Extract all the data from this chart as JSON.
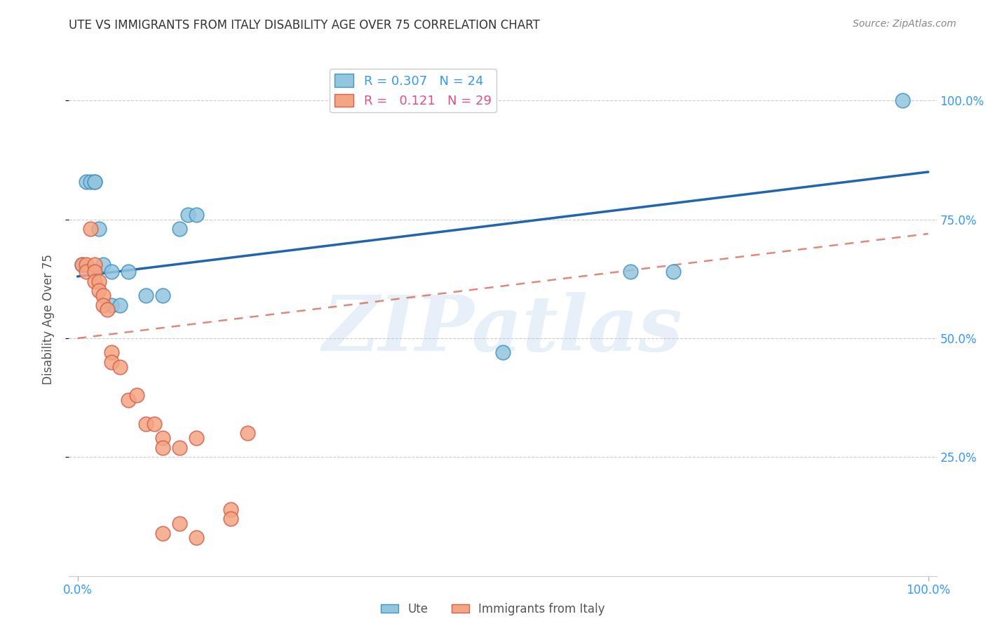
{
  "title": "UTE VS IMMIGRANTS FROM ITALY DISABILITY AGE OVER 75 CORRELATION CHART",
  "source": "Source: ZipAtlas.com",
  "ylabel": "Disability Age Over 75",
  "watermark": "ZIPatlas",
  "ute_color": "#92c5de",
  "ute_edge_color": "#4393c3",
  "italy_color": "#f4a582",
  "italy_edge_color": "#d6604d",
  "ute_line_color": "#2166ac",
  "italy_line_color": "#d6604d",
  "ute_x": [
    0.005,
    0.01,
    0.015,
    0.02,
    0.02,
    0.025,
    0.03,
    0.04,
    0.04,
    0.05,
    0.06,
    0.08,
    0.1,
    0.12,
    0.13,
    0.14,
    0.5,
    0.65,
    0.7,
    0.97
  ],
  "ute_y": [
    0.655,
    0.83,
    0.83,
    0.83,
    0.83,
    0.73,
    0.655,
    0.64,
    0.57,
    0.57,
    0.64,
    0.59,
    0.59,
    0.73,
    0.76,
    0.76,
    0.47,
    0.64,
    0.64,
    1.0
  ],
  "italy_x": [
    0.005,
    0.01,
    0.01,
    0.015,
    0.02,
    0.02,
    0.02,
    0.025,
    0.025,
    0.03,
    0.03,
    0.035,
    0.04,
    0.04,
    0.05,
    0.06,
    0.07,
    0.08,
    0.09,
    0.1,
    0.1,
    0.12,
    0.14,
    0.18,
    0.18,
    0.2,
    0.14,
    0.12,
    0.1
  ],
  "italy_y": [
    0.655,
    0.655,
    0.64,
    0.73,
    0.655,
    0.64,
    0.62,
    0.62,
    0.6,
    0.59,
    0.57,
    0.56,
    0.47,
    0.45,
    0.44,
    0.37,
    0.38,
    0.32,
    0.32,
    0.29,
    0.27,
    0.27,
    0.29,
    0.14,
    0.12,
    0.3,
    0.08,
    0.11,
    0.09
  ],
  "ute_trend_x": [
    0.0,
    1.0
  ],
  "ute_trend_y": [
    0.63,
    0.85
  ],
  "italy_trend_x": [
    0.0,
    1.0
  ],
  "italy_trend_y": [
    0.5,
    0.72
  ],
  "xlim": [
    -0.01,
    1.01
  ],
  "ylim": [
    0.0,
    1.08
  ],
  "yticks": [
    0.25,
    0.5,
    0.75,
    1.0
  ],
  "ytick_labels": [
    "25.0%",
    "50.0%",
    "75.0%",
    "100.0%"
  ],
  "xtick_positions": [
    0.0,
    1.0
  ],
  "xtick_labels": [
    "0.0%",
    "100.0%"
  ]
}
